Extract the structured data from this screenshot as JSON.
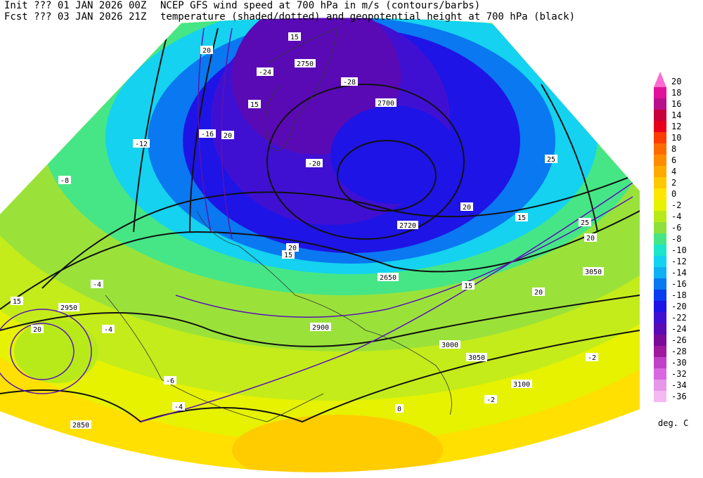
{
  "header": {
    "init": "Init  ??? 01 JAN 2026 00Z",
    "fcst": "Fcst ??? 03 JAN 2026 21Z",
    "title1": "NCEP GFS wind speed at 700 hPa in m/s (contours/barbs)",
    "title2": "temperature (shaded/dotted) and geopotential height at 700 hPa (black)"
  },
  "legend": {
    "unit": "deg. C",
    "levels": [
      {
        "value": 20,
        "color": "#ff6ccf"
      },
      {
        "value": 18,
        "color": "#e0129a"
      },
      {
        "value": 16,
        "color": "#b8108a"
      },
      {
        "value": 14,
        "color": "#c8003c"
      },
      {
        "value": 12,
        "color": "#e8001a"
      },
      {
        "value": 10,
        "color": "#ff3c00"
      },
      {
        "value": 8,
        "color": "#ff6a00"
      },
      {
        "value": 6,
        "color": "#ff8c00"
      },
      {
        "value": 4,
        "color": "#ffaa00"
      },
      {
        "value": 2,
        "color": "#ffc800"
      },
      {
        "value": 0,
        "color": "#ffe600"
      },
      {
        "value": -2,
        "color": "#e6f200"
      },
      {
        "value": -4,
        "color": "#b8ea1a"
      },
      {
        "value": -6,
        "color": "#8ee03c"
      },
      {
        "value": -8,
        "color": "#46e686"
      },
      {
        "value": -10,
        "color": "#1ee6c8"
      },
      {
        "value": -12,
        "color": "#14d2f0"
      },
      {
        "value": -14,
        "color": "#10b0f4"
      },
      {
        "value": -16,
        "color": "#0a78f0"
      },
      {
        "value": -18,
        "color": "#0a3cf0"
      },
      {
        "value": -20,
        "color": "#1e14e6"
      },
      {
        "value": -22,
        "color": "#4010d2"
      },
      {
        "value": -24,
        "color": "#5a0ab4"
      },
      {
        "value": -26,
        "color": "#7a0a9a"
      },
      {
        "value": -28,
        "color": "#a0189e"
      },
      {
        "value": -30,
        "color": "#c040c8"
      },
      {
        "value": -32,
        "color": "#d868e0"
      },
      {
        "value": -34,
        "color": "#e896ea"
      },
      {
        "value": -36,
        "color": "#f4b8f2"
      }
    ]
  },
  "map_labels": [
    "2750",
    "2700",
    "2720",
    "2650",
    "2950",
    "2900",
    "2850",
    "3050",
    "3050",
    "3100",
    "3000",
    "15",
    "20",
    "15",
    "20",
    "25",
    "20",
    "15",
    "20",
    "15",
    "25",
    "20",
    "15",
    "20",
    "15",
    "20",
    "-12",
    "-8",
    "-4",
    "-2",
    "-6",
    "-16",
    "-20",
    "-24",
    "-28",
    "-4",
    "-4",
    "-2",
    "0"
  ]
}
